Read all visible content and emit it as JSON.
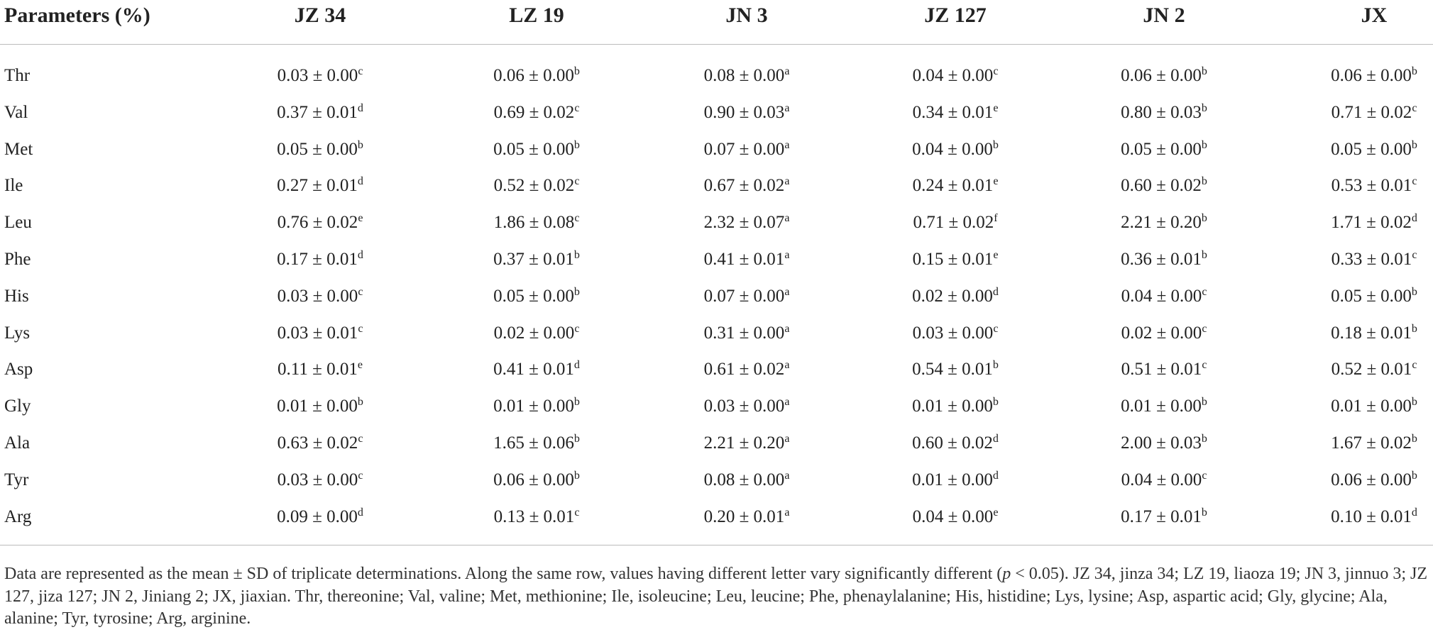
{
  "table": {
    "header": [
      "Parameters (%)",
      "JZ 34",
      "LZ 19",
      "JN 3",
      "JZ 127",
      "JN 2",
      "JX"
    ],
    "rows": [
      {
        "label": "Thr",
        "cells": [
          [
            "0.03 ± 0.00",
            "c"
          ],
          [
            "0.06 ± 0.00",
            "b"
          ],
          [
            "0.08 ± 0.00",
            "a"
          ],
          [
            "0.04 ± 0.00",
            "c"
          ],
          [
            "0.06 ± 0.00",
            "b"
          ],
          [
            "0.06 ± 0.00",
            "b"
          ]
        ]
      },
      {
        "label": "Val",
        "cells": [
          [
            "0.37 ± 0.01",
            "d"
          ],
          [
            "0.69 ± 0.02",
            "c"
          ],
          [
            "0.90 ± 0.03",
            "a"
          ],
          [
            "0.34 ± 0.01",
            "e"
          ],
          [
            "0.80 ± 0.03",
            "b"
          ],
          [
            "0.71 ± 0.02",
            "c"
          ]
        ]
      },
      {
        "label": "Met",
        "cells": [
          [
            "0.05 ± 0.00",
            "b"
          ],
          [
            "0.05 ± 0.00",
            "b"
          ],
          [
            "0.07 ± 0.00",
            "a"
          ],
          [
            "0.04 ± 0.00",
            "b"
          ],
          [
            "0.05 ± 0.00",
            "b"
          ],
          [
            "0.05 ± 0.00",
            "b"
          ]
        ]
      },
      {
        "label": "Ile",
        "cells": [
          [
            "0.27 ± 0.01",
            "d"
          ],
          [
            "0.52 ± 0.02",
            "c"
          ],
          [
            "0.67 ± 0.02",
            "a"
          ],
          [
            "0.24 ± 0.01",
            "e"
          ],
          [
            "0.60 ± 0.02",
            "b"
          ],
          [
            "0.53 ± 0.01",
            "c"
          ]
        ]
      },
      {
        "label": "Leu",
        "cells": [
          [
            "0.76 ± 0.02",
            "e"
          ],
          [
            "1.86 ± 0.08",
            "c"
          ],
          [
            "2.32 ± 0.07",
            "a"
          ],
          [
            "0.71 ± 0.02",
            "f"
          ],
          [
            "2.21 ± 0.20",
            "b"
          ],
          [
            "1.71 ± 0.02",
            "d"
          ]
        ]
      },
      {
        "label": "Phe",
        "cells": [
          [
            "0.17 ± 0.01",
            "d"
          ],
          [
            "0.37 ± 0.01",
            "b"
          ],
          [
            "0.41 ± 0.01",
            "a"
          ],
          [
            "0.15 ± 0.01",
            "e"
          ],
          [
            "0.36 ± 0.01",
            "b"
          ],
          [
            "0.33 ± 0.01",
            "c"
          ]
        ]
      },
      {
        "label": "His",
        "cells": [
          [
            "0.03 ± 0.00",
            "c"
          ],
          [
            "0.05 ± 0.00",
            "b"
          ],
          [
            "0.07 ± 0.00",
            "a"
          ],
          [
            "0.02 ± 0.00",
            "d"
          ],
          [
            "0.04 ± 0.00",
            "c"
          ],
          [
            "0.05 ± 0.00",
            "b"
          ]
        ]
      },
      {
        "label": "Lys",
        "cells": [
          [
            "0.03 ± 0.01",
            "c"
          ],
          [
            "0.02 ± 0.00",
            "c"
          ],
          [
            "0.31 ± 0.00",
            "a"
          ],
          [
            "0.03 ± 0.00",
            "c"
          ],
          [
            "0.02 ± 0.00",
            "c"
          ],
          [
            "0.18 ± 0.01",
            "b"
          ]
        ]
      },
      {
        "label": "Asp",
        "cells": [
          [
            "0.11 ± 0.01",
            "e"
          ],
          [
            "0.41 ± 0.01",
            "d"
          ],
          [
            "0.61 ± 0.02",
            "a"
          ],
          [
            "0.54 ± 0.01",
            "b"
          ],
          [
            "0.51 ± 0.01",
            "c"
          ],
          [
            "0.52 ± 0.01",
            "c"
          ]
        ]
      },
      {
        "label": "Gly",
        "cells": [
          [
            "0.01 ± 0.00",
            "b"
          ],
          [
            "0.01 ± 0.00",
            "b"
          ],
          [
            "0.03 ± 0.00",
            "a"
          ],
          [
            "0.01 ± 0.00",
            "b"
          ],
          [
            "0.01 ± 0.00",
            "b"
          ],
          [
            "0.01 ± 0.00",
            "b"
          ]
        ]
      },
      {
        "label": "Ala",
        "cells": [
          [
            "0.63 ± 0.02",
            "c"
          ],
          [
            "1.65 ± 0.06",
            "b"
          ],
          [
            "2.21 ± 0.20",
            "a"
          ],
          [
            "0.60 ± 0.02",
            "d"
          ],
          [
            "2.00 ± 0.03",
            "b"
          ],
          [
            "1.67 ± 0.02",
            "b"
          ]
        ]
      },
      {
        "label": "Tyr",
        "cells": [
          [
            "0.03 ± 0.00",
            "c"
          ],
          [
            "0.06 ± 0.00",
            "b"
          ],
          [
            "0.08 ± 0.00",
            "a"
          ],
          [
            "0.01 ± 0.00",
            "d"
          ],
          [
            "0.04 ± 0.00",
            "c"
          ],
          [
            "0.06 ± 0.00",
            "b"
          ]
        ]
      },
      {
        "label": "Arg",
        "cells": [
          [
            "0.09 ± 0.00",
            "d"
          ],
          [
            "0.13 ± 0.01",
            "c"
          ],
          [
            "0.20 ± 0.01",
            "a"
          ],
          [
            "0.04 ± 0.00",
            "e"
          ],
          [
            "0.17 ± 0.01",
            "b"
          ],
          [
            "0.10 ± 0.01",
            "d"
          ]
        ]
      }
    ]
  },
  "footnote": {
    "before": "Data are represented as the mean ± SD of triplicate determinations. Along the same row, values having different letter vary significantly different (",
    "italic": "p",
    "after": " < 0.05). JZ 34, jinza 34; LZ 19, liaoza 19; JN 3, jinnuo 3; JZ 127, jiza 127; JN 2, Jiniang 2; JX, jiaxian. Thr, thereonine; Val, valine; Met, methionine; Ile, isoleucine; Leu, leucine; Phe, phenaylalanine; His, histidine; Lys, lysine; Asp, aspartic acid; Gly, glycine; Ala, alanine; Tyr, tyrosine; Arg, arginine."
  }
}
